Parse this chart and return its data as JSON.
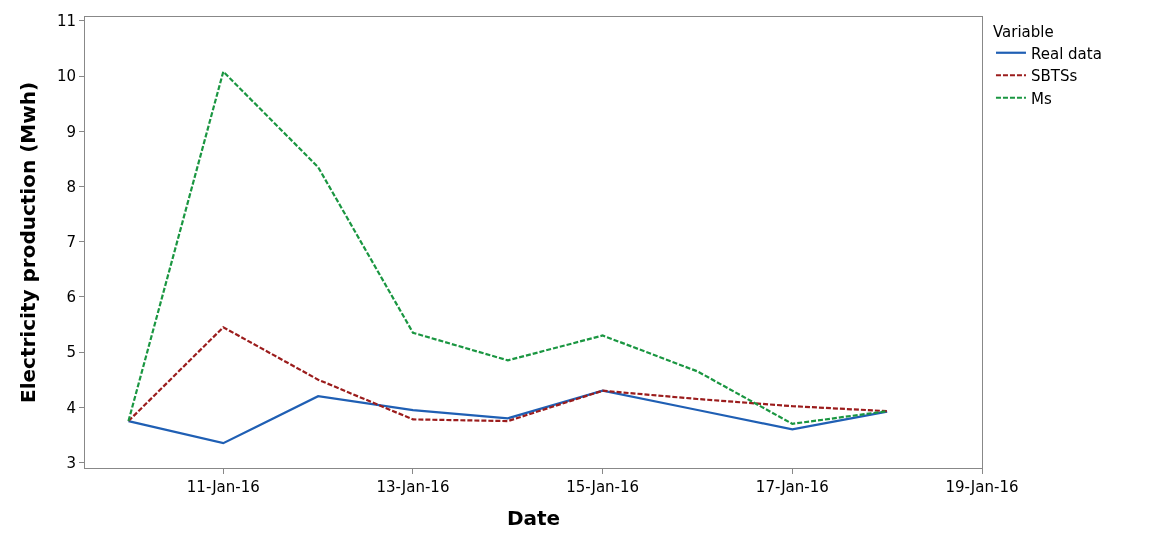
{
  "chart_data": {
    "type": "line",
    "xlabel": "Date",
    "ylabel": "Electricity production (Mwh)",
    "legend_title": "Variable",
    "legend": "top right",
    "marker": "none",
    "x": [
      "--01-10",
      "--01-11",
      "--01-12",
      "--01-13",
      "--01-14",
      "--01-15",
      "--01-16",
      "--01-17",
      "--01-18"
    ],
    "series": [
      {
        "name": "Real data",
        "color": "#1f5fb4",
        "line_style": "solid",
        "values": [
          3.75,
          3.35,
          4.2,
          3.95,
          3.8,
          4.3,
          3.95,
          3.6,
          3.92
        ]
      },
      {
        "name": "SBTSs",
        "color": "#9b1c1c",
        "line_style": "dashed",
        "values": [
          3.75,
          5.45,
          4.5,
          3.78,
          3.75,
          4.3,
          4.15,
          4.02,
          3.93
        ]
      },
      {
        "name": "Ms",
        "color": "#1a9641",
        "line_style": "dashed",
        "values": [
          3.75,
          10.08,
          8.35,
          5.35,
          4.85,
          5.3,
          4.65,
          3.7,
          3.93
        ]
      }
    ],
    "xlim": [
      "--01-09T13:00",
      "--01-19"
    ],
    "xticks": [
      {
        "value": "--01-11",
        "label": "11-Jan-16"
      },
      {
        "value": "--01-13",
        "label": "13-Jan-16"
      },
      {
        "value": "--01-15",
        "label": "15-Jan-16"
      },
      {
        "value": "--01-17",
        "label": "17-Jan-16"
      },
      {
        "value": "--01-19",
        "label": "19-Jan-16"
      }
    ],
    "ylim": [
      2.9,
      11.07
    ],
    "yticks": [
      3,
      4,
      5,
      6,
      7,
      8,
      9,
      10,
      11
    ]
  }
}
